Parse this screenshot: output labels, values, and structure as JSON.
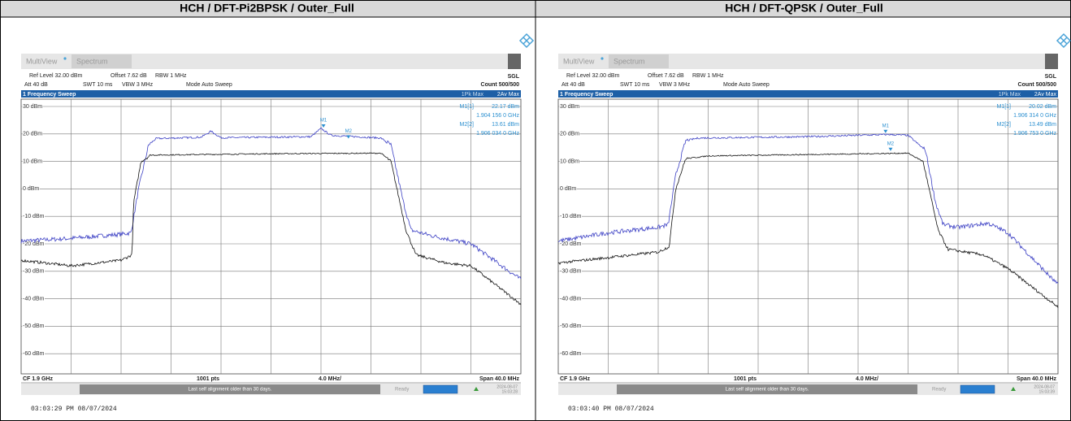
{
  "panels": [
    {
      "title": "HCH / DFT-Pi2BPSK / Outer_Full",
      "tabs": [
        "MultiView",
        "Spectrum"
      ],
      "settings_row1": [
        "Ref Level 32.00 dBm",
        "Offset 7.62 dB",
        "RBW 1 MHz"
      ],
      "sweep_mode": "SGL",
      "settings_row2": [
        "Att 40 dB",
        "SWT 10 ms",
        "VBW 3 MHz",
        "Mode Auto Sweep"
      ],
      "count": "Count 500/500",
      "sweep_title": "1 Frequency Sweep",
      "trace_legend": [
        "1Pk Max",
        "2Av Max"
      ],
      "markers": [
        {
          "tag": "M1",
          "name": "M1[1]",
          "level": "22.17 dBm",
          "freq": "1.904 156 0 GHz"
        },
        {
          "tag": "M2",
          "name": "M2[2]",
          "level": "13.61 dBm",
          "freq": "1.906 034 0 GHz"
        }
      ],
      "y_labels": [
        "30 dBm",
        "20 dBm",
        "10 dBm",
        "0 dBm",
        "-10 dBm",
        "-20 dBm",
        "-30 dBm",
        "-40 dBm",
        "-50 dBm",
        "-60 dBm"
      ],
      "footer": [
        "CF 1.9 GHz",
        "1001 pts",
        "4.0 MHz/",
        "Span 40.0 MHz"
      ],
      "status_message": "Last self alignment older than 30 days.",
      "status": "Ready",
      "date": "2024-08-07",
      "time": "15:03:28",
      "timestamp": "03:03:29 PM 08/07/2024"
    },
    {
      "title": "HCH / DFT-QPSK / Outer_Full",
      "tabs": [
        "MultiView",
        "Spectrum"
      ],
      "settings_row1": [
        "Ref Level 32.00 dBm",
        "Offset 7.62 dB",
        "RBW 1 MHz"
      ],
      "sweep_mode": "SGL",
      "settings_row2": [
        "Att 40 dB",
        "SWT 10 ms",
        "VBW 3 MHz",
        "Mode Auto Sweep"
      ],
      "count": "Count 500/500",
      "sweep_title": "1 Frequency Sweep",
      "trace_legend": [
        "1Pk Max",
        "2Av Max"
      ],
      "markers": [
        {
          "tag": "M1",
          "name": "M1[1]",
          "level": "20.02 dBm",
          "freq": "1.906 314 0 GHz"
        },
        {
          "tag": "M2",
          "name": "M2[2]",
          "level": "13.49 dBm",
          "freq": "1.906 753 0 GHz"
        }
      ],
      "y_labels": [
        "30 dBm",
        "20 dBm",
        "10 dBm",
        "0 dBm",
        "-10 dBm",
        "-20 dBm",
        "-30 dBm",
        "-40 dBm",
        "-50 dBm",
        "-60 dBm"
      ],
      "footer": [
        "CF 1.9 GHz",
        "1001 pts",
        "4.0 MHz/",
        "Span 40.0 MHz"
      ],
      "status_message": "Last self alignment older than 30 days.",
      "status": "Ready",
      "date": "2024-08-07",
      "time": "15:03:39",
      "timestamp": "03:03:40 PM 08/07/2024"
    }
  ]
}
